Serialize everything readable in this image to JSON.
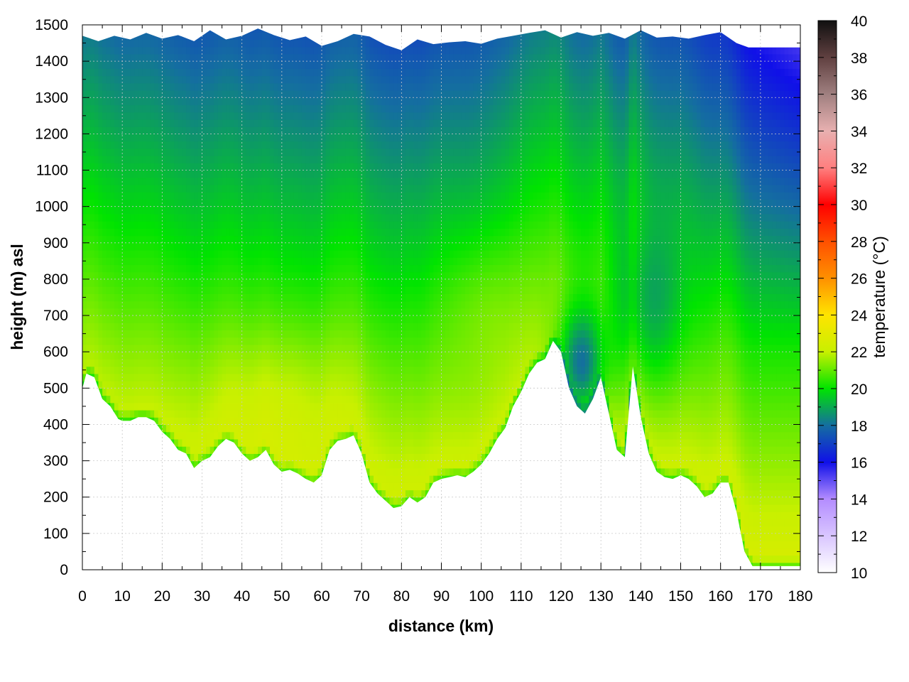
{
  "chart_data": {
    "type": "heatmap",
    "title": "",
    "xlabel": "distance (km)",
    "ylabel": "height (m) asl",
    "colorbar_label": "temperature (°C)",
    "xlim": [
      0,
      180
    ],
    "ylim": [
      0,
      1500
    ],
    "x_ticks": [
      0,
      10,
      20,
      30,
      40,
      50,
      60,
      70,
      80,
      90,
      100,
      110,
      120,
      130,
      140,
      150,
      160,
      170,
      180
    ],
    "y_ticks": [
      0,
      100,
      200,
      300,
      400,
      500,
      600,
      700,
      800,
      900,
      1000,
      1100,
      1200,
      1300,
      1400,
      1500
    ],
    "colorbar_range": [
      10,
      40
    ],
    "colorbar_ticks": [
      10,
      12,
      14,
      16,
      18,
      20,
      22,
      24,
      26,
      28,
      30,
      32,
      34,
      36,
      38,
      40
    ],
    "grid": true,
    "terrain_profile": {
      "x": [
        0,
        1,
        3,
        5,
        7,
        9,
        10,
        12,
        14,
        16,
        18,
        20,
        22,
        24,
        26,
        28,
        30,
        32,
        34,
        36,
        38,
        40,
        42,
        44,
        46,
        48,
        50,
        52,
        54,
        56,
        58,
        60,
        62,
        64,
        66,
        68,
        70,
        72,
        74,
        76,
        78,
        80,
        82,
        84,
        86,
        88,
        90,
        92,
        94,
        96,
        98,
        100,
        102,
        104,
        106,
        108,
        110,
        112,
        114,
        116,
        118,
        120,
        122,
        124,
        126,
        128,
        130,
        132,
        134,
        136,
        138,
        140,
        142,
        144,
        146,
        148,
        150,
        152,
        154,
        156,
        158,
        160,
        162,
        164,
        166,
        168,
        170,
        172,
        174,
        176,
        178,
        180
      ],
      "y": [
        500,
        540,
        530,
        470,
        450,
        415,
        410,
        410,
        420,
        420,
        410,
        380,
        360,
        330,
        320,
        280,
        300,
        310,
        340,
        360,
        350,
        320,
        300,
        310,
        330,
        290,
        270,
        275,
        265,
        250,
        240,
        260,
        330,
        355,
        360,
        370,
        320,
        240,
        210,
        190,
        170,
        175,
        200,
        185,
        200,
        240,
        250,
        255,
        260,
        255,
        270,
        290,
        320,
        360,
        390,
        450,
        490,
        540,
        570,
        580,
        630,
        600,
        500,
        450,
        430,
        470,
        530,
        430,
        330,
        310,
        560,
        420,
        320,
        270,
        255,
        250,
        260,
        250,
        230,
        200,
        210,
        240,
        240,
        160,
        50,
        10,
        10,
        10,
        10,
        10,
        10,
        10
      ]
    },
    "series": [
      {
        "name": "",
        "color_stops": [
          {
            "value": 10,
            "color": "#ffffff"
          },
          {
            "value": 14,
            "color": "#b38cff"
          },
          {
            "value": 16,
            "color": "#1010e8"
          },
          {
            "value": 18,
            "color": "#146ea0"
          },
          {
            "value": 20,
            "color": "#00e400"
          },
          {
            "value": 22,
            "color": "#c8f000"
          },
          {
            "value": 24,
            "color": "#ffe400"
          },
          {
            "value": 26,
            "color": "#ff9000"
          },
          {
            "value": 28,
            "color": "#ff5000"
          },
          {
            "value": 30,
            "color": "#ff0000"
          },
          {
            "value": 32,
            "color": "#ff8080"
          },
          {
            "value": 34,
            "color": "#e8b0b0"
          },
          {
            "value": 36,
            "color": "#a08080"
          },
          {
            "value": 38,
            "color": "#604040"
          },
          {
            "value": 40,
            "color": "#101010"
          }
        ]
      }
    ]
  }
}
